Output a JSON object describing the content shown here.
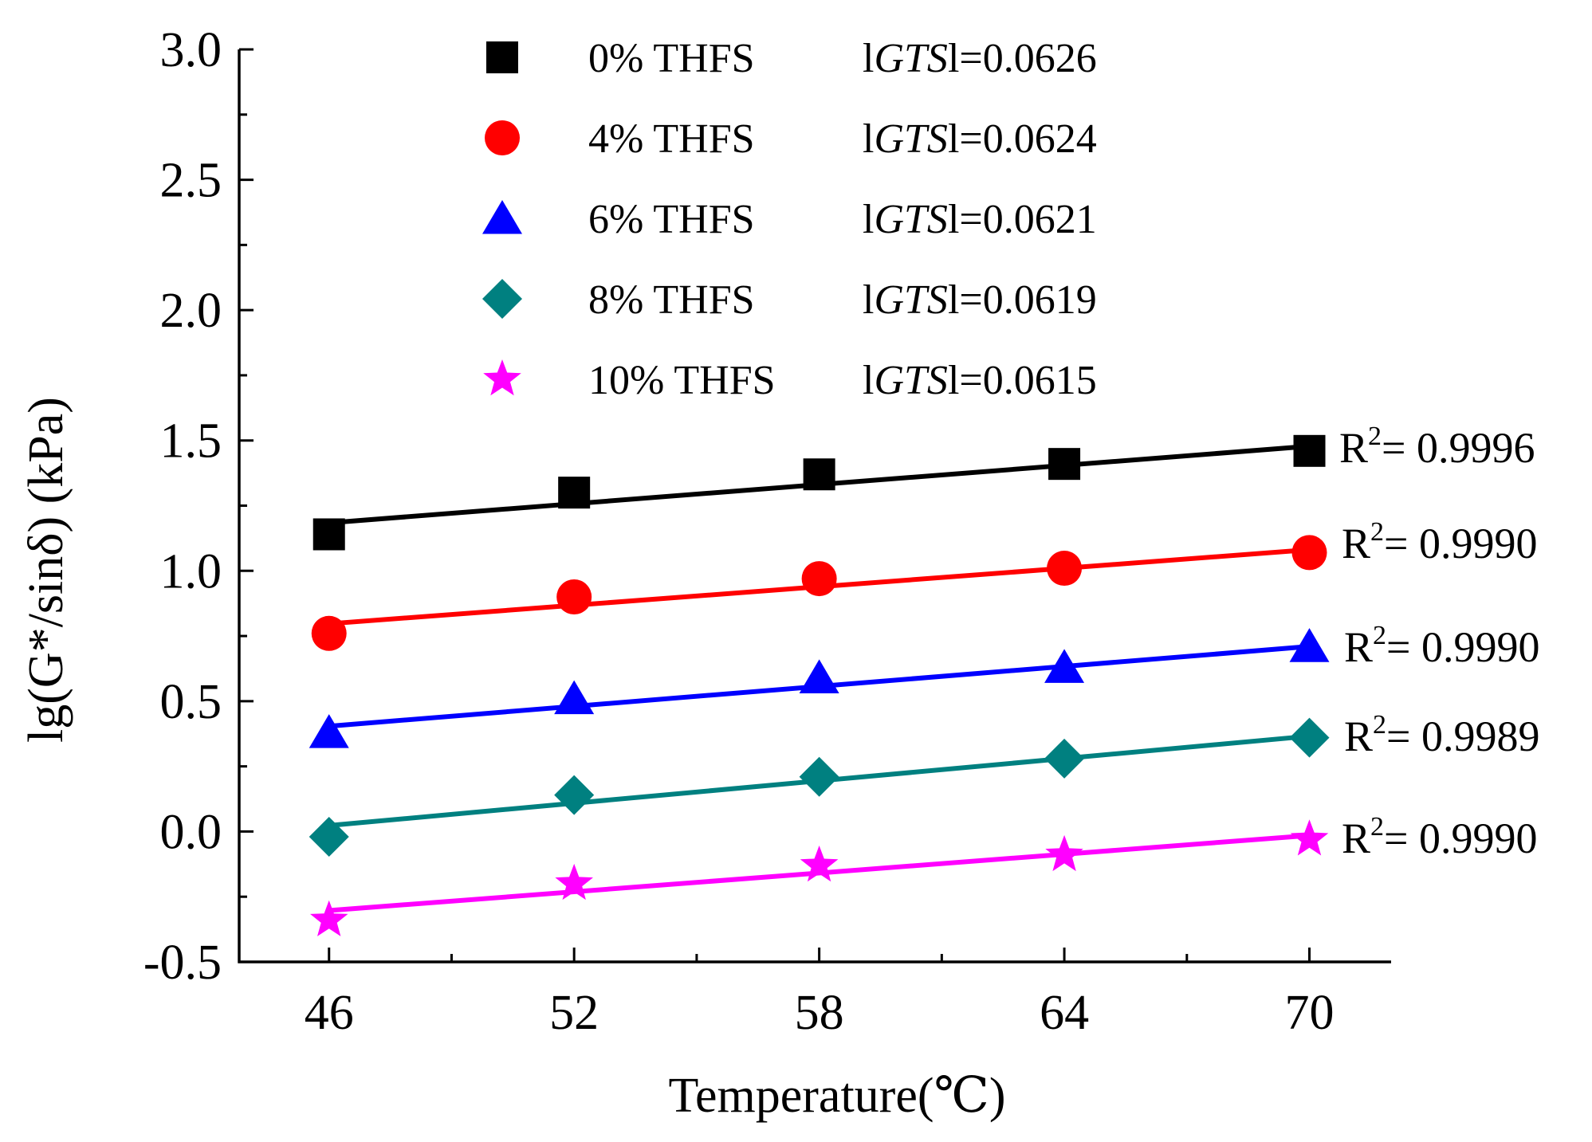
{
  "chart_data": {
    "type": "scatter",
    "title": "",
    "xlabel": "Temperature(℃)",
    "ylabel": "lg(G*/sinδ) (kPa)",
    "x": [
      46,
      52,
      58,
      64,
      70
    ],
    "xticks": [
      "46",
      "52",
      "58",
      "64",
      "70"
    ],
    "xlim": [
      43.8,
      72
    ],
    "ylim": [
      -0.5,
      3.0
    ],
    "yticks": [
      "-0.5",
      "0.0",
      "0.5",
      "1.0",
      "1.5",
      "2.0",
      "2.5",
      "3.0"
    ],
    "grid": false,
    "legend_position": "top",
    "series": [
      {
        "name": "0% THFS",
        "gts_prefix": "l",
        "gts_label": "GTS",
        "gts_value": "l=0.0626",
        "marker": "square",
        "color": "#000000",
        "values": [
          1.14,
          1.3,
          1.37,
          1.41,
          1.46
        ],
        "fit": [
          1.184,
          1.478
        ],
        "r2_label": "R",
        "r2_sup": "2",
        "r2_value": "= 0.9996"
      },
      {
        "name": "4% THFS",
        "gts_prefix": "l",
        "gts_label": "GTS",
        "gts_value": "l=0.0624",
        "marker": "circle",
        "color": "#ff0000",
        "values": [
          0.76,
          0.9,
          0.97,
          1.01,
          1.07
        ],
        "fit": [
          0.797,
          1.081
        ],
        "r2_label": "R",
        "r2_sup": "2",
        "r2_value": "= 0.9990"
      },
      {
        "name": "6% THFS",
        "gts_prefix": "l",
        "gts_label": "GTS",
        "gts_value": "l=0.0621",
        "marker": "triangle",
        "color": "#0000ff",
        "values": [
          0.38,
          0.51,
          0.59,
          0.63,
          0.71
        ],
        "fit": [
          0.404,
          0.71
        ],
        "r2_label": "R",
        "r2_sup": "2",
        "r2_value": "= 0.9990"
      },
      {
        "name": "8% THFS",
        "gts_prefix": "l",
        "gts_label": "GTS",
        "gts_value": "l=0.0619",
        "marker": "diamond",
        "color": "#008080",
        "values": [
          -0.02,
          0.14,
          0.21,
          0.28,
          0.36
        ],
        "fit": [
          0.023,
          0.366
        ],
        "r2_label": "R",
        "r2_sup": "2",
        "r2_value": "= 0.9989"
      },
      {
        "name": "10% THFS",
        "gts_prefix": "l",
        "gts_label": "GTS",
        "gts_value": "l=0.0615",
        "marker": "star",
        "color": "#ff00ff",
        "values": [
          -0.34,
          -0.2,
          -0.13,
          -0.09,
          -0.03
        ],
        "fit": [
          -0.303,
          -0.015
        ],
        "r2_label": "R",
        "r2_sup": "2",
        "r2_value": "= 0.9990"
      }
    ]
  }
}
